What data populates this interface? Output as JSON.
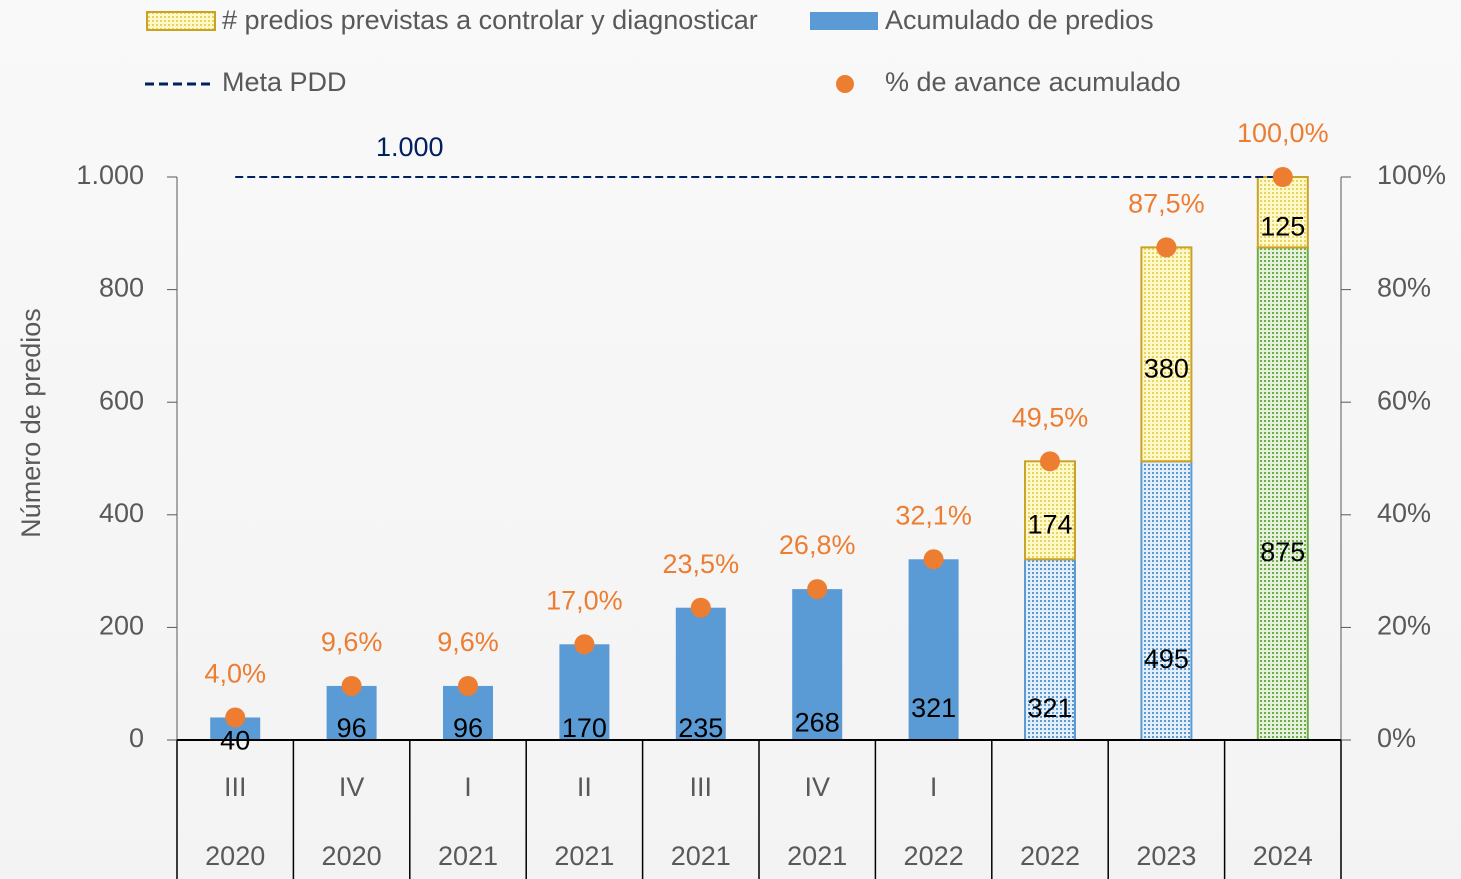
{
  "chart_data": {
    "type": "bar",
    "y_label": "Número de predios",
    "categories": {
      "quarter": [
        "III",
        "IV",
        "I",
        "II",
        "III",
        "IV",
        "I",
        null,
        null,
        null
      ],
      "year": [
        "2020",
        "2020",
        "2021",
        "2021",
        "2021",
        "2021",
        "2022",
        "2022",
        "2023",
        "2024"
      ]
    },
    "series": [
      {
        "name": "Acumulado de predios",
        "color": "#5b9bd5",
        "values": [
          40,
          96,
          96,
          170,
          235,
          268,
          321,
          321,
          495,
          875
        ],
        "colors": [
          "#5b9bd5",
          "#5b9bd5",
          "#5b9bd5",
          "#5b9bd5",
          "#5b9bd5",
          "#5b9bd5",
          "#5b9bd5",
          "#5b9bd5",
          "#5b9bd5",
          "#70ad47"
        ],
        "hatched": [
          false,
          false,
          false,
          false,
          false,
          false,
          false,
          true,
          true,
          true
        ]
      },
      {
        "name": "# predios previstas a controlar y diagnosticar",
        "color": "#c9a227",
        "stacked": true,
        "values": [
          null,
          null,
          null,
          null,
          null,
          null,
          null,
          174,
          380,
          125
        ]
      },
      {
        "name": "% de avance acumulado",
        "color": "#ed7d31",
        "axis": "y2",
        "values": [
          4.0,
          9.6,
          9.6,
          17.0,
          23.5,
          26.8,
          32.1,
          49.5,
          87.5,
          100.0
        ],
        "value_labels": [
          "4,0%",
          "9,6%",
          "9,6%",
          "17,0%",
          "23,5%",
          "26,8%",
          "32,1%",
          "49,5%",
          "87,5%",
          "100,0%"
        ]
      }
    ],
    "meta": {
      "name": "Meta PDD",
      "value": 1000,
      "value_label": "1.000",
      "color": "#002060"
    },
    "ylim": [
      0,
      1000
    ],
    "yticks": [
      0,
      200,
      400,
      600,
      800,
      {
        "value": 1000,
        "label": "1.000"
      }
    ],
    "y2lim": [
      0,
      100
    ],
    "y2ticks": [
      {
        "value": 0,
        "label": "0%"
      },
      {
        "value": 20,
        "label": "20%"
      },
      {
        "value": 40,
        "label": "40%"
      },
      {
        "value": 60,
        "label": "60%"
      },
      {
        "value": 80,
        "label": "80%"
      },
      {
        "value": 100,
        "label": "100%"
      }
    ]
  }
}
